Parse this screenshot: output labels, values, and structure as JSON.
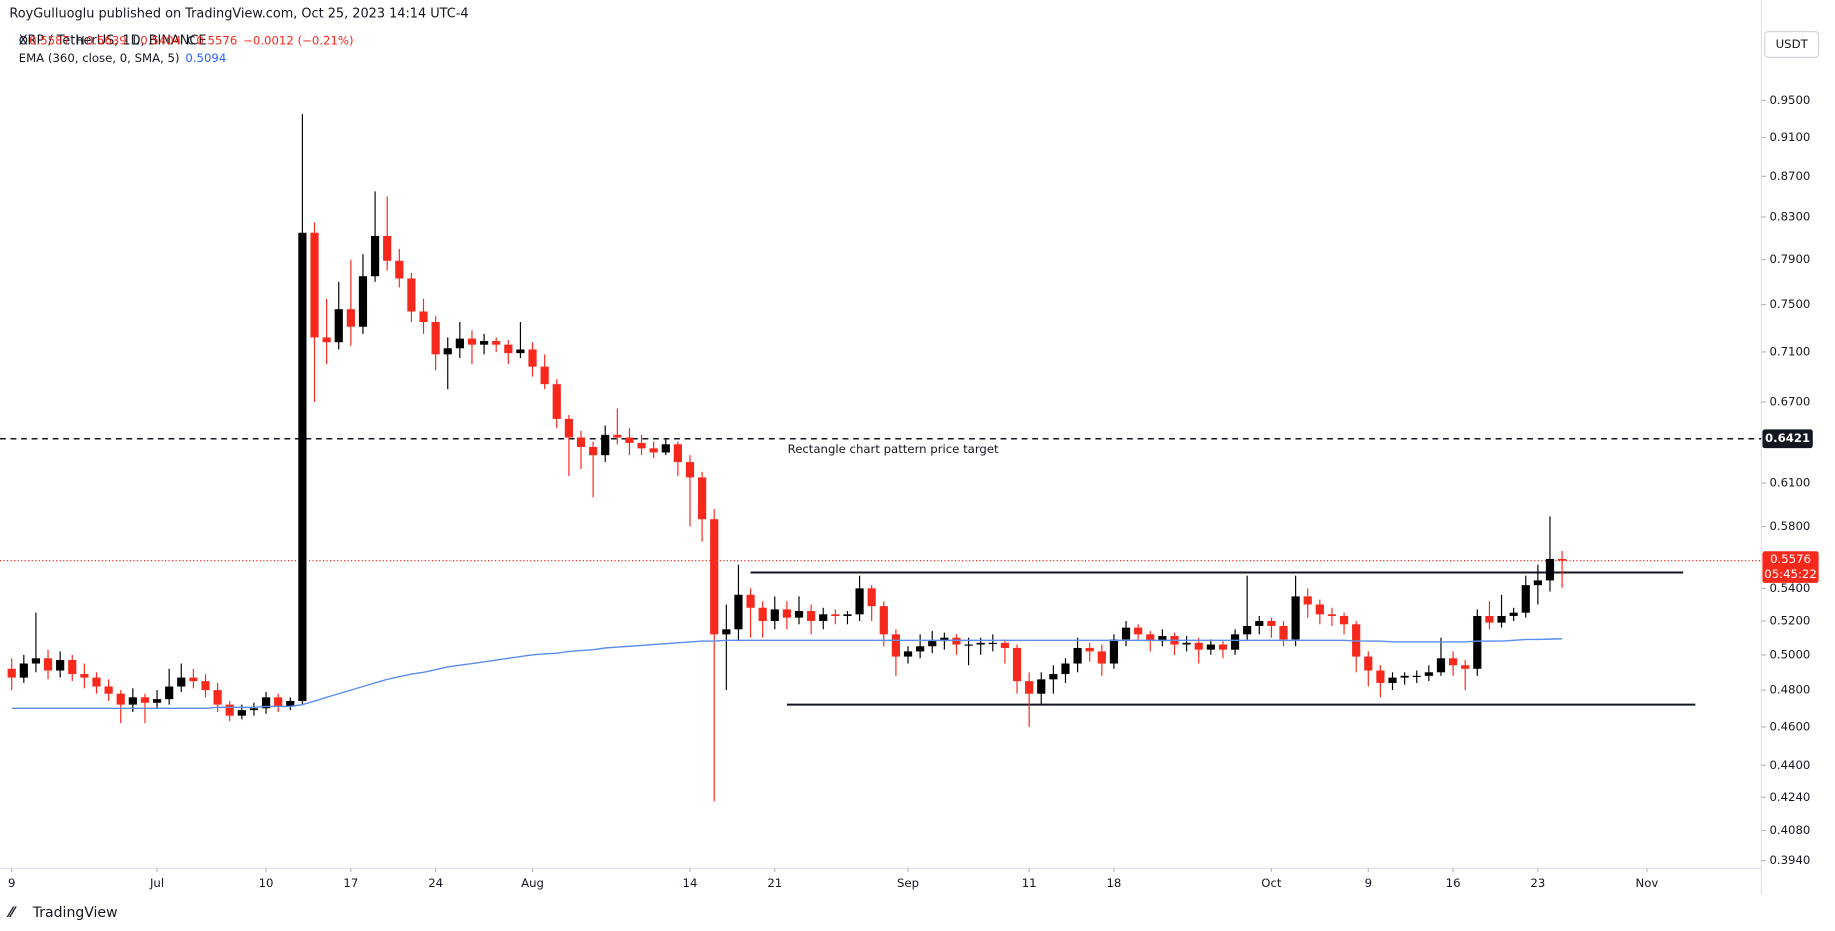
{
  "chart_data": {
    "type": "candlestick",
    "publisher": "RoyGulluoglu published on TradingView.com, Oct 25, 2023 14:14 UTC-4",
    "symbol": "XRP / TetherUS, 1D, BINANCE",
    "legend_ohlc": [
      {
        "key": "O",
        "value": "0.5587"
      },
      {
        "key": "H",
        "value": "0.5639"
      },
      {
        "key": "L",
        "value": "0.5404"
      },
      {
        "key": "C",
        "value": "0.5576"
      },
      {
        "key": "",
        "value": "−0.0012 (−0.21%)"
      }
    ],
    "currency": "USDT",
    "footer": "TradingView",
    "log_scale": true,
    "grid": false,
    "up_color": "#000000",
    "down_color": "#f7281c",
    "ylim": [
      0.3905,
      1.067
    ],
    "yticks": [
      {
        "value": 0.95,
        "label": "0.9500"
      },
      {
        "value": 0.91,
        "label": "0.9100"
      },
      {
        "value": 0.87,
        "label": "0.8700"
      },
      {
        "value": 0.83,
        "label": "0.8300"
      },
      {
        "value": 0.79,
        "label": "0.7900"
      },
      {
        "value": 0.75,
        "label": "0.7500"
      },
      {
        "value": 0.71,
        "label": "0.7100"
      },
      {
        "value": 0.67,
        "label": "0.6700"
      },
      {
        "value": 0.61,
        "label": "0.6100"
      },
      {
        "value": 0.58,
        "label": "0.5800"
      },
      {
        "value": 0.54,
        "label": "0.5400"
      },
      {
        "value": 0.52,
        "label": "0.5200"
      },
      {
        "value": 0.5,
        "label": "0.5000"
      },
      {
        "value": 0.48,
        "label": "0.4800"
      },
      {
        "value": 0.46,
        "label": "0.4600"
      },
      {
        "value": 0.44,
        "label": "0.4400"
      },
      {
        "value": 0.424,
        "label": "0.4240"
      },
      {
        "value": 0.408,
        "label": "0.4080"
      },
      {
        "value": 0.394,
        "label": "0.3940"
      }
    ],
    "xticks": [
      {
        "value": 0,
        "label": "9"
      },
      {
        "value": 12,
        "label": "Jul"
      },
      {
        "value": 21,
        "label": "10"
      },
      {
        "value": 28,
        "label": "17"
      },
      {
        "value": 35,
        "label": "24"
      },
      {
        "value": 43,
        "label": "Aug"
      },
      {
        "value": 56,
        "label": "14"
      },
      {
        "value": 63,
        "label": "21"
      },
      {
        "value": 74,
        "label": "Sep"
      },
      {
        "value": 84,
        "label": "11"
      },
      {
        "value": 91,
        "label": "18"
      },
      {
        "value": 104,
        "label": "Oct"
      },
      {
        "value": 112,
        "label": "9"
      },
      {
        "value": 119,
        "label": "16"
      },
      {
        "value": 126,
        "label": "23"
      },
      {
        "value": 135,
        "label": "Nov"
      }
    ],
    "candles": [
      [
        0.492,
        0.498,
        0.48,
        0.487
      ],
      [
        0.487,
        0.5,
        0.484,
        0.495
      ],
      [
        0.495,
        0.525,
        0.49,
        0.498
      ],
      [
        0.498,
        0.503,
        0.486,
        0.491
      ],
      [
        0.491,
        0.502,
        0.487,
        0.497
      ],
      [
        0.497,
        0.5,
        0.485,
        0.489
      ],
      [
        0.489,
        0.495,
        0.481,
        0.487
      ],
      [
        0.487,
        0.49,
        0.478,
        0.482
      ],
      [
        0.482,
        0.486,
        0.474,
        0.478
      ],
      [
        0.478,
        0.48,
        0.462,
        0.472
      ],
      [
        0.472,
        0.481,
        0.468,
        0.476
      ],
      [
        0.476,
        0.478,
        0.462,
        0.473
      ],
      [
        0.473,
        0.48,
        0.47,
        0.475
      ],
      [
        0.475,
        0.492,
        0.472,
        0.482
      ],
      [
        0.482,
        0.495,
        0.479,
        0.487
      ],
      [
        0.487,
        0.492,
        0.481,
        0.485
      ],
      [
        0.485,
        0.489,
        0.476,
        0.48
      ],
      [
        0.48,
        0.484,
        0.468,
        0.472
      ],
      [
        0.472,
        0.474,
        0.463,
        0.466
      ],
      [
        0.466,
        0.472,
        0.464,
        0.469
      ],
      [
        0.469,
        0.473,
        0.466,
        0.47
      ],
      [
        0.47,
        0.479,
        0.467,
        0.476
      ],
      [
        0.476,
        0.478,
        0.468,
        0.471
      ],
      [
        0.471,
        0.476,
        0.469,
        0.474
      ],
      [
        0.474,
        0.935,
        0.472,
        0.815
      ],
      [
        0.815,
        0.825,
        0.67,
        0.722
      ],
      [
        0.722,
        0.755,
        0.7,
        0.718
      ],
      [
        0.718,
        0.77,
        0.712,
        0.746
      ],
      [
        0.746,
        0.79,
        0.715,
        0.731
      ],
      [
        0.731,
        0.795,
        0.725,
        0.775
      ],
      [
        0.775,
        0.855,
        0.77,
        0.812
      ],
      [
        0.812,
        0.85,
        0.78,
        0.789
      ],
      [
        0.789,
        0.8,
        0.765,
        0.773
      ],
      [
        0.773,
        0.778,
        0.735,
        0.744
      ],
      [
        0.744,
        0.755,
        0.725,
        0.735
      ],
      [
        0.735,
        0.74,
        0.695,
        0.708
      ],
      [
        0.708,
        0.722,
        0.68,
        0.713
      ],
      [
        0.713,
        0.735,
        0.705,
        0.721
      ],
      [
        0.721,
        0.728,
        0.7,
        0.716
      ],
      [
        0.716,
        0.725,
        0.708,
        0.719
      ],
      [
        0.719,
        0.722,
        0.71,
        0.716
      ],
      [
        0.716,
        0.72,
        0.7,
        0.709
      ],
      [
        0.709,
        0.735,
        0.705,
        0.712
      ],
      [
        0.712,
        0.718,
        0.69,
        0.698
      ],
      [
        0.698,
        0.708,
        0.68,
        0.684
      ],
      [
        0.684,
        0.688,
        0.65,
        0.657
      ],
      [
        0.657,
        0.66,
        0.615,
        0.643
      ],
      [
        0.643,
        0.648,
        0.62,
        0.636
      ],
      [
        0.636,
        0.64,
        0.6,
        0.63
      ],
      [
        0.63,
        0.652,
        0.625,
        0.645
      ],
      [
        0.645,
        0.665,
        0.638,
        0.643
      ],
      [
        0.643,
        0.65,
        0.63,
        0.639
      ],
      [
        0.639,
        0.645,
        0.63,
        0.635
      ],
      [
        0.635,
        0.64,
        0.628,
        0.632
      ],
      [
        0.632,
        0.642,
        0.63,
        0.638
      ],
      [
        0.638,
        0.64,
        0.615,
        0.625
      ],
      [
        0.625,
        0.63,
        0.58,
        0.614
      ],
      [
        0.614,
        0.618,
        0.57,
        0.585
      ],
      [
        0.585,
        0.592,
        0.422,
        0.512
      ],
      [
        0.512,
        0.53,
        0.48,
        0.515
      ],
      [
        0.515,
        0.555,
        0.508,
        0.536
      ],
      [
        0.536,
        0.54,
        0.51,
        0.528
      ],
      [
        0.528,
        0.532,
        0.51,
        0.52
      ],
      [
        0.52,
        0.535,
        0.515,
        0.527
      ],
      [
        0.527,
        0.532,
        0.515,
        0.522
      ],
      [
        0.522,
        0.535,
        0.518,
        0.526
      ],
      [
        0.526,
        0.53,
        0.512,
        0.52
      ],
      [
        0.52,
        0.528,
        0.515,
        0.524
      ],
      [
        0.524,
        0.527,
        0.518,
        0.523
      ],
      [
        0.523,
        0.526,
        0.518,
        0.524
      ],
      [
        0.524,
        0.548,
        0.52,
        0.54
      ],
      [
        0.54,
        0.542,
        0.52,
        0.529
      ],
      [
        0.529,
        0.532,
        0.505,
        0.512
      ],
      [
        0.512,
        0.515,
        0.488,
        0.499
      ],
      [
        0.499,
        0.505,
        0.495,
        0.502
      ],
      [
        0.502,
        0.512,
        0.498,
        0.505
      ],
      [
        0.505,
        0.514,
        0.501,
        0.508
      ],
      [
        0.508,
        0.513,
        0.503,
        0.51
      ],
      [
        0.51,
        0.512,
        0.5,
        0.506
      ],
      [
        0.506,
        0.51,
        0.494,
        0.506
      ],
      [
        0.506,
        0.51,
        0.5,
        0.507
      ],
      [
        0.507,
        0.512,
        0.502,
        0.507
      ],
      [
        0.507,
        0.509,
        0.495,
        0.504
      ],
      [
        0.504,
        0.506,
        0.478,
        0.485
      ],
      [
        0.485,
        0.49,
        0.46,
        0.478
      ],
      [
        0.478,
        0.49,
        0.472,
        0.486
      ],
      [
        0.486,
        0.494,
        0.478,
        0.489
      ],
      [
        0.489,
        0.498,
        0.484,
        0.495
      ],
      [
        0.495,
        0.51,
        0.49,
        0.504
      ],
      [
        0.504,
        0.507,
        0.496,
        0.502
      ],
      [
        0.502,
        0.506,
        0.488,
        0.495
      ],
      [
        0.495,
        0.512,
        0.492,
        0.509
      ],
      [
        0.509,
        0.52,
        0.505,
        0.516
      ],
      [
        0.516,
        0.518,
        0.508,
        0.512
      ],
      [
        0.512,
        0.514,
        0.502,
        0.508
      ],
      [
        0.508,
        0.515,
        0.505,
        0.511
      ],
      [
        0.511,
        0.513,
        0.5,
        0.506
      ],
      [
        0.506,
        0.511,
        0.502,
        0.507
      ],
      [
        0.507,
        0.51,
        0.495,
        0.503
      ],
      [
        0.503,
        0.509,
        0.5,
        0.506
      ],
      [
        0.506,
        0.508,
        0.498,
        0.503
      ],
      [
        0.503,
        0.515,
        0.5,
        0.512
      ],
      [
        0.512,
        0.548,
        0.508,
        0.517
      ],
      [
        0.517,
        0.523,
        0.512,
        0.52
      ],
      [
        0.52,
        0.522,
        0.51,
        0.517
      ],
      [
        0.517,
        0.52,
        0.505,
        0.509
      ],
      [
        0.509,
        0.548,
        0.505,
        0.535
      ],
      [
        0.535,
        0.54,
        0.522,
        0.53
      ],
      [
        0.53,
        0.533,
        0.518,
        0.524
      ],
      [
        0.524,
        0.528,
        0.517,
        0.523
      ],
      [
        0.523,
        0.525,
        0.512,
        0.518
      ],
      [
        0.518,
        0.52,
        0.49,
        0.499
      ],
      [
        0.499,
        0.502,
        0.482,
        0.491
      ],
      [
        0.491,
        0.494,
        0.476,
        0.484
      ],
      [
        0.484,
        0.49,
        0.48,
        0.487
      ],
      [
        0.487,
        0.49,
        0.483,
        0.488
      ],
      [
        0.488,
        0.491,
        0.484,
        0.488
      ],
      [
        0.488,
        0.494,
        0.485,
        0.49
      ],
      [
        0.49,
        0.51,
        0.488,
        0.498
      ],
      [
        0.498,
        0.502,
        0.488,
        0.494
      ],
      [
        0.494,
        0.497,
        0.48,
        0.492
      ],
      [
        0.492,
        0.527,
        0.488,
        0.523
      ],
      [
        0.523,
        0.532,
        0.515,
        0.519
      ],
      [
        0.519,
        0.536,
        0.516,
        0.523
      ],
      [
        0.523,
        0.528,
        0.52,
        0.525
      ],
      [
        0.525,
        0.548,
        0.522,
        0.542
      ],
      [
        0.542,
        0.555,
        0.53,
        0.545
      ],
      [
        0.545,
        0.587,
        0.538,
        0.5587
      ],
      [
        0.5587,
        0.5639,
        0.5404,
        0.5576
      ]
    ],
    "ema": {
      "name": "EMA (360, close, 0, SMA, 5)",
      "value_label": "0.5094",
      "color": "#5b8def",
      "values": [
        0.47,
        0.47,
        0.47,
        0.47,
        0.47,
        0.47,
        0.47,
        0.47,
        0.47,
        0.47,
        0.47,
        0.47,
        0.47,
        0.47,
        0.47,
        0.47,
        0.47,
        0.4705,
        0.4705,
        0.4705,
        0.4705,
        0.471,
        0.471,
        0.471,
        0.472,
        0.474,
        0.476,
        0.478,
        0.48,
        0.482,
        0.484,
        0.486,
        0.4875,
        0.489,
        0.49,
        0.4915,
        0.493,
        0.494,
        0.495,
        0.496,
        0.497,
        0.498,
        0.499,
        0.5,
        0.5005,
        0.501,
        0.502,
        0.5025,
        0.503,
        0.504,
        0.5045,
        0.505,
        0.5055,
        0.506,
        0.5065,
        0.507,
        0.5075,
        0.508,
        0.508,
        0.5085,
        0.5085,
        0.5085,
        0.5085,
        0.5085,
        0.5085,
        0.5085,
        0.5085,
        0.5085,
        0.5085,
        0.5085,
        0.5085,
        0.5085,
        0.5085,
        0.5085,
        0.5085,
        0.5085,
        0.5085,
        0.5085,
        0.5085,
        0.5085,
        0.5085,
        0.5085,
        0.5085,
        0.5085,
        0.5085,
        0.5085,
        0.5085,
        0.5085,
        0.5085,
        0.5085,
        0.5085,
        0.5085,
        0.5085,
        0.5085,
        0.5085,
        0.5085,
        0.5085,
        0.5085,
        0.5085,
        0.5085,
        0.5085,
        0.5085,
        0.5085,
        0.5085,
        0.5085,
        0.5085,
        0.5085,
        0.5085,
        0.5085,
        0.5085,
        0.5085,
        0.508,
        0.508,
        0.508,
        0.5075,
        0.5075,
        0.5075,
        0.5075,
        0.5075,
        0.5075,
        0.5075,
        0.508,
        0.508,
        0.508,
        0.5085,
        0.509,
        0.509,
        0.5092,
        0.5094
      ]
    },
    "levels": [
      {
        "value": 0.6421,
        "style": "dashed",
        "label": "Rectangle chart pattern price target",
        "badge": "0.6421"
      },
      {
        "value": 0.55,
        "style": "solid",
        "start": 61,
        "end": 138
      },
      {
        "value": 0.472,
        "style": "solid",
        "start": 64,
        "end": 139
      }
    ],
    "last_price": {
      "value": 0.5576,
      "label": "0.5576",
      "countdown": "05:45:22"
    }
  }
}
